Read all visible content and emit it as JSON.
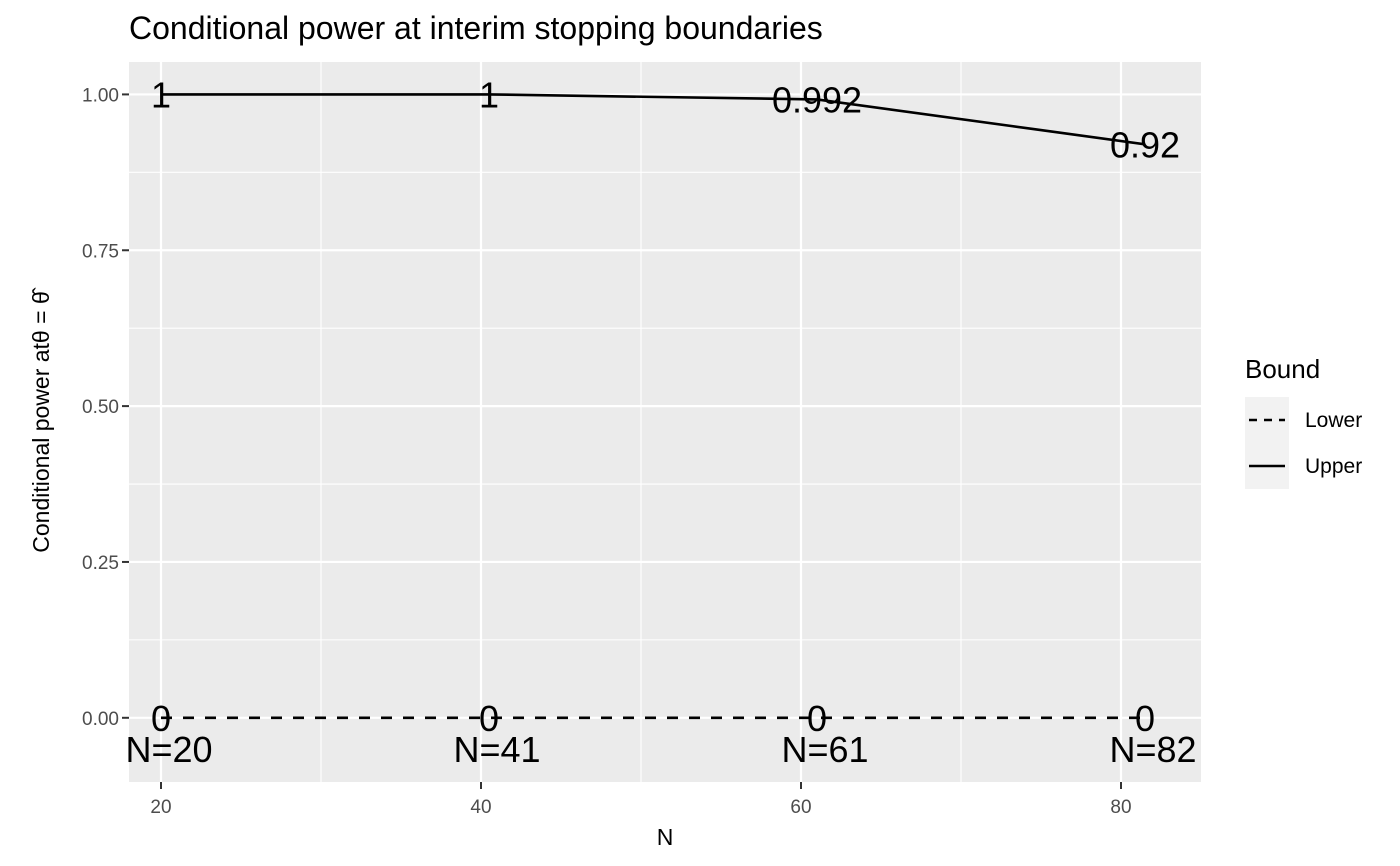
{
  "chart_data": {
    "type": "line",
    "title": "Conditional power at interim stopping boundaries",
    "xlabel": "N",
    "ylabel_prefix": "Conditional power at",
    "ylabel_math": "θ = θ̂",
    "xlim": [
      18,
      85
    ],
    "ylim": [
      -0.103,
      1.052
    ],
    "x_ticks": [
      20,
      40,
      60,
      80
    ],
    "x_tick_labels": [
      "20",
      "40",
      "60",
      "80"
    ],
    "y_ticks": [
      0,
      0.25,
      0.5,
      0.75,
      1
    ],
    "y_tick_labels": [
      "0.00",
      "0.25",
      "0.50",
      "0.75",
      "1.00"
    ],
    "grid": true,
    "legend": {
      "title": "Bound",
      "position": "right",
      "entries": [
        {
          "label": "Lower",
          "linetype": "dashed"
        },
        {
          "label": "Upper",
          "linetype": "solid"
        }
      ]
    },
    "series": [
      {
        "name": "Lower",
        "linetype": "dashed",
        "x": [
          20,
          40.5,
          61,
          81.5
        ],
        "y": [
          0,
          0,
          0,
          0
        ],
        "labels": [
          "0",
          "0",
          "0",
          "0"
        ]
      },
      {
        "name": "Upper",
        "linetype": "solid",
        "x": [
          20,
          40.5,
          61,
          81.5
        ],
        "y": [
          1,
          1,
          0.992,
          0.92
        ],
        "labels": [
          "1",
          "1",
          "0.992",
          "0.92"
        ]
      }
    ],
    "n_annotations": [
      {
        "x": 20.5,
        "text": "N=20"
      },
      {
        "x": 41,
        "text": "N=41"
      },
      {
        "x": 61.5,
        "text": "N=61"
      },
      {
        "x": 82,
        "text": "N=82"
      }
    ],
    "colors": {
      "panel_background": "#ebebeb",
      "grid_line": "#ffffff",
      "line": "#000000",
      "tick_text": "#4d4d4d",
      "legend_key_background": "#f2f2f2"
    }
  }
}
